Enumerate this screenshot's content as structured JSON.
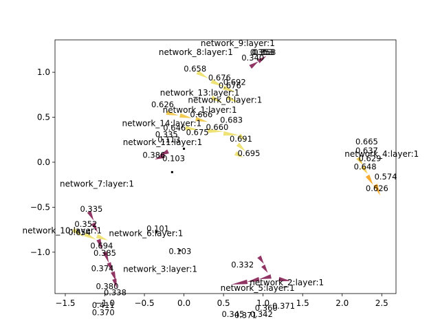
{
  "chart_data": {
    "type": "scatter",
    "grid": false,
    "legend": "none",
    "xlim": [
      -1.63,
      2.68
    ],
    "ylim": [
      -1.46,
      1.36
    ],
    "x_ticks": [
      "-1.5",
      "-1.0",
      "-0.5",
      "0.0",
      "0.5",
      "1.0",
      "1.5",
      "2.0",
      "2.5"
    ],
    "y_ticks": [
      "-1.0",
      "-0.5",
      "0.0",
      "0.5",
      "1.0"
    ],
    "colors": {
      "purple": "#8b2a5c",
      "yellow": "#eee270",
      "orange": "#f5a524",
      "gold": "#f0c84a"
    },
    "node_labels": [
      {
        "text": "network_9:layer:1",
        "x": 0.68,
        "y": 1.29
      },
      {
        "text": "network_8:layer:1",
        "x": 0.15,
        "y": 1.19
      },
      {
        "text": "network_13:layer:1",
        "x": 0.2,
        "y": 0.74
      },
      {
        "text": "network_0:layer:1",
        "x": 0.52,
        "y": 0.66
      },
      {
        "text": "network_1:layer:1",
        "x": 0.2,
        "y": 0.55
      },
      {
        "text": "network_14:layer:1",
        "x": -0.28,
        "y": 0.4
      },
      {
        "text": "network_11:layer:1",
        "x": -0.27,
        "y": 0.19
      },
      {
        "text": "network_7:layer:1",
        "x": -1.1,
        "y": -0.27
      },
      {
        "text": "network_6:layer:1",
        "x": -0.48,
        "y": -0.82
      },
      {
        "text": "network_10:layer:1",
        "x": -1.54,
        "y": -0.79
      },
      {
        "text": "network_4:layer:1",
        "x": 2.5,
        "y": 0.06
      },
      {
        "text": "network_3:layer:1",
        "x": -0.3,
        "y": -1.22
      },
      {
        "text": "network_5:layer:1",
        "x": 0.93,
        "y": -1.43
      },
      {
        "text": "network_2:layer:1",
        "x": 1.3,
        "y": -1.37
      }
    ],
    "value_labels": [
      {
        "text": "0.353",
        "x": 0.98,
        "y": 1.19
      },
      {
        "text": "0.353",
        "x": 1.0,
        "y": 1.19
      },
      {
        "text": "0.353",
        "x": 1.02,
        "y": 1.19
      },
      {
        "text": "0.340",
        "x": 0.87,
        "y": 1.13
      },
      {
        "text": "0.658",
        "x": 0.14,
        "y": 1.01
      },
      {
        "text": "0.676",
        "x": 0.45,
        "y": 0.91
      },
      {
        "text": "0.692",
        "x": 0.64,
        "y": 0.86
      },
      {
        "text": "0.676",
        "x": 0.58,
        "y": 0.82
      },
      {
        "text": "0.626",
        "x": -0.27,
        "y": 0.61
      },
      {
        "text": "0.666",
        "x": 0.22,
        "y": 0.5
      },
      {
        "text": "0.683",
        "x": 0.6,
        "y": 0.44
      },
      {
        "text": "0.660",
        "x": 0.42,
        "y": 0.36
      },
      {
        "text": "0.646",
        "x": -0.12,
        "y": 0.35
      },
      {
        "text": "0.675",
        "x": 0.17,
        "y": 0.3
      },
      {
        "text": "0.335",
        "x": -0.22,
        "y": 0.28
      },
      {
        "text": "0.691",
        "x": 0.72,
        "y": 0.23
      },
      {
        "text": "0.113",
        "x": -0.19,
        "y": 0.22
      },
      {
        "text": "0.695",
        "x": 0.82,
        "y": 0.07
      },
      {
        "text": "0.386",
        "x": -0.38,
        "y": 0.05
      },
      {
        "text": "0.103",
        "x": -0.13,
        "y": 0.01
      },
      {
        "text": "0.665",
        "x": 2.31,
        "y": 0.2
      },
      {
        "text": "0.637",
        "x": 2.31,
        "y": 0.1
      },
      {
        "text": "0.629",
        "x": 2.35,
        "y": 0.01
      },
      {
        "text": "0.648",
        "x": 2.29,
        "y": -0.08
      },
      {
        "text": "0.574",
        "x": 2.55,
        "y": -0.19
      },
      {
        "text": "0.626",
        "x": 2.44,
        "y": -0.32
      },
      {
        "text": "0.335",
        "x": -1.17,
        "y": -0.55
      },
      {
        "text": "0.352",
        "x": -1.24,
        "y": -0.72
      },
      {
        "text": "0.101",
        "x": -0.33,
        "y": -0.77
      },
      {
        "text": "0.654",
        "x": -1.32,
        "y": -0.81
      },
      {
        "text": "0.694",
        "x": -1.04,
        "y": -0.96
      },
      {
        "text": "0.385",
        "x": -1.0,
        "y": -1.04
      },
      {
        "text": "0.103",
        "x": -0.05,
        "y": -1.02
      },
      {
        "text": "0.374",
        "x": -1.03,
        "y": -1.21
      },
      {
        "text": "0.380",
        "x": -0.97,
        "y": -1.41
      },
      {
        "text": "0.338",
        "x": -0.87,
        "y": -1.48
      },
      {
        "text": "0.332",
        "x": 0.74,
        "y": -1.17
      },
      {
        "text": "0.411",
        "x": -1.02,
        "y": -1.62
      },
      {
        "text": "0.370",
        "x": -1.02,
        "y": -1.7
      },
      {
        "text": "0.371",
        "x": 1.26,
        "y": -1.63
      },
      {
        "text": "0.360",
        "x": 1.04,
        "y": -1.65
      },
      {
        "text": "0.342",
        "x": 0.98,
        "y": -1.72
      },
      {
        "text": "0.345",
        "x": 0.62,
        "y": -1.72
      },
      {
        "text": "0.371",
        "x": 0.78,
        "y": -1.73
      }
    ],
    "small_markers": [
      {
        "x": 0.0,
        "y": 0.15
      },
      {
        "x": -0.15,
        "y": -0.11
      },
      {
        "x": -0.35,
        "y": -0.78
      },
      {
        "x": -0.05,
        "y": -0.98
      }
    ],
    "arrows": [
      {
        "x": 0.94,
        "y": 1.12,
        "dx": 0.1,
        "dy": 0.06,
        "color": "purple"
      },
      {
        "x": 0.84,
        "y": 1.06,
        "dx": 0.1,
        "dy": 0.06,
        "color": "purple"
      },
      {
        "x": 0.17,
        "y": 1.0,
        "dx": 0.14,
        "dy": -0.07,
        "color": "yellow"
      },
      {
        "x": 0.35,
        "y": 0.9,
        "dx": 0.15,
        "dy": -0.06,
        "color": "yellow"
      },
      {
        "x": 0.5,
        "y": 0.83,
        "dx": 0.15,
        "dy": -0.05,
        "color": "yellow"
      },
      {
        "x": 0.35,
        "y": 0.72,
        "dx": 0.14,
        "dy": -0.06,
        "color": "yellow"
      },
      {
        "x": 0.55,
        "y": 0.72,
        "dx": 0.14,
        "dy": -0.06,
        "color": "yellow"
      },
      {
        "x": -0.22,
        "y": 0.55,
        "dx": 0.15,
        "dy": -0.03,
        "color": "gold"
      },
      {
        "x": -0.05,
        "y": 0.52,
        "dx": 0.15,
        "dy": -0.03,
        "color": "gold"
      },
      {
        "x": 0.15,
        "y": 0.48,
        "dx": 0.15,
        "dy": -0.03,
        "color": "gold"
      },
      {
        "x": 0.02,
        "y": 0.38,
        "dx": 0.17,
        "dy": -0.02,
        "color": "yellow"
      },
      {
        "x": 0.3,
        "y": 0.35,
        "dx": 0.2,
        "dy": -0.01,
        "color": "yellow"
      },
      {
        "x": 0.5,
        "y": 0.32,
        "dx": 0.2,
        "dy": -0.02,
        "color": "yellow"
      },
      {
        "x": 0.7,
        "y": 0.3,
        "dx": 0.08,
        "dy": -0.06,
        "color": "yellow"
      },
      {
        "x": 0.68,
        "y": 0.2,
        "dx": 0.1,
        "dy": -0.08,
        "color": "yellow"
      },
      {
        "x": 0.65,
        "y": 0.1,
        "dx": 0.1,
        "dy": -0.05,
        "color": "yellow"
      },
      {
        "x": -0.2,
        "y": 0.12,
        "dx": -0.12,
        "dy": -0.05,
        "color": "purple"
      },
      {
        "x": -0.25,
        "y": 0.07,
        "dx": -0.12,
        "dy": -0.04,
        "color": "purple"
      },
      {
        "x": 2.2,
        "y": 0.05,
        "dx": 0.06,
        "dy": -0.08,
        "color": "gold"
      },
      {
        "x": 2.26,
        "y": -0.05,
        "dx": 0.06,
        "dy": -0.08,
        "color": "gold"
      },
      {
        "x": 2.32,
        "y": -0.15,
        "dx": 0.07,
        "dy": -0.1,
        "color": "orange"
      },
      {
        "x": 2.42,
        "y": -0.25,
        "dx": 0.06,
        "dy": -0.12,
        "color": "orange"
      },
      {
        "x": -1.4,
        "y": -0.75,
        "dx": 0.14,
        "dy": -0.08,
        "color": "yellow"
      },
      {
        "x": -1.25,
        "y": -0.8,
        "dx": 0.14,
        "dy": -0.06,
        "color": "yellow"
      },
      {
        "x": -1.1,
        "y": -0.82,
        "dx": 0.14,
        "dy": -0.05,
        "color": "yellow"
      },
      {
        "x": -1.2,
        "y": -0.55,
        "dx": 0.06,
        "dy": -0.1,
        "color": "purple"
      },
      {
        "x": -1.15,
        "y": -0.68,
        "dx": 0.06,
        "dy": -0.1,
        "color": "purple"
      },
      {
        "x": -1.08,
        "y": -0.86,
        "dx": 0.05,
        "dy": -0.12,
        "color": "purple"
      },
      {
        "x": -1.0,
        "y": -1.0,
        "dx": 0.05,
        "dy": -0.12,
        "color": "purple"
      },
      {
        "x": -0.95,
        "y": -1.12,
        "dx": 0.05,
        "dy": -0.1,
        "color": "purple"
      },
      {
        "x": -0.9,
        "y": -1.22,
        "dx": 0.04,
        "dy": -0.1,
        "color": "purple"
      },
      {
        "x": -0.88,
        "y": -1.3,
        "dx": 0.03,
        "dy": -0.1,
        "color": "purple"
      },
      {
        "x": 0.95,
        "y": -1.05,
        "dx": 0.06,
        "dy": -0.08,
        "color": "purple"
      },
      {
        "x": 1.0,
        "y": -1.15,
        "dx": 0.06,
        "dy": -0.08,
        "color": "purple"
      },
      {
        "x": 0.95,
        "y": -1.3,
        "dx": -0.15,
        "dy": -0.03,
        "color": "purple"
      },
      {
        "x": 0.8,
        "y": -1.33,
        "dx": -0.2,
        "dy": -0.03,
        "color": "purple"
      },
      {
        "x": 1.2,
        "y": -1.3,
        "dx": 0.15,
        "dy": -0.02,
        "color": "purple"
      },
      {
        "x": 1.1,
        "y": -1.27,
        "dx": -0.15,
        "dy": -0.03,
        "color": "purple"
      }
    ]
  }
}
